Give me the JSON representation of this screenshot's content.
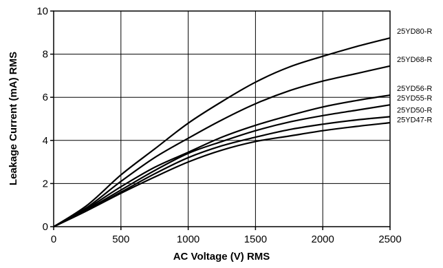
{
  "chart_data": {
    "type": "line",
    "title": "",
    "xlabel": "AC Voltage (V) RMS",
    "ylabel": "Leakage Current (mA) RMS",
    "xlim": [
      0,
      2500
    ],
    "ylim": [
      0,
      10
    ],
    "xticks": [
      0,
      500,
      1000,
      1500,
      2000,
      2500
    ],
    "yticks": [
      0,
      2,
      4,
      6,
      8,
      10
    ],
    "grid": true,
    "legend": "series labels at right end of lines",
    "series": [
      {
        "name": "25YD80-R",
        "x": [
          0,
          250,
          500,
          750,
          1000,
          1250,
          1500,
          1750,
          2000,
          2250,
          2500
        ],
        "y": [
          0,
          1.0,
          2.4,
          3.6,
          4.8,
          5.8,
          6.7,
          7.4,
          7.9,
          8.35,
          8.75
        ]
      },
      {
        "name": "25YD68-R",
        "x": [
          0,
          250,
          500,
          750,
          1000,
          1250,
          1500,
          1750,
          2000,
          2250,
          2500
        ],
        "y": [
          0,
          0.9,
          2.1,
          3.2,
          4.1,
          4.95,
          5.7,
          6.3,
          6.75,
          7.1,
          7.45
        ]
      },
      {
        "name": "25YD56-R",
        "x": [
          0,
          250,
          500,
          750,
          1000,
          1250,
          1500,
          1750,
          2000,
          2250,
          2500
        ],
        "y": [
          0,
          0.85,
          1.85,
          2.75,
          3.45,
          4.15,
          4.7,
          5.15,
          5.55,
          5.85,
          6.1
        ]
      },
      {
        "name": "25YD55-R",
        "x": [
          0,
          250,
          500,
          750,
          1000,
          1250,
          1500,
          1750,
          2000,
          2250,
          2500
        ],
        "y": [
          0,
          0.8,
          1.7,
          2.6,
          3.4,
          3.95,
          4.45,
          4.85,
          5.15,
          5.4,
          5.65
        ]
      },
      {
        "name": "25YD50-R",
        "x": [
          0,
          250,
          500,
          750,
          1000,
          1250,
          1500,
          1750,
          2000,
          2250,
          2500
        ],
        "y": [
          0,
          0.75,
          1.6,
          2.45,
          3.2,
          3.75,
          4.15,
          4.5,
          4.75,
          4.95,
          5.1
        ]
      },
      {
        "name": "25YD47-R",
        "x": [
          0,
          250,
          500,
          750,
          1000,
          1250,
          1500,
          1750,
          2000,
          2250,
          2500
        ],
        "y": [
          0,
          0.75,
          1.55,
          2.3,
          3.0,
          3.55,
          3.95,
          4.2,
          4.45,
          4.65,
          4.82
        ]
      }
    ]
  }
}
